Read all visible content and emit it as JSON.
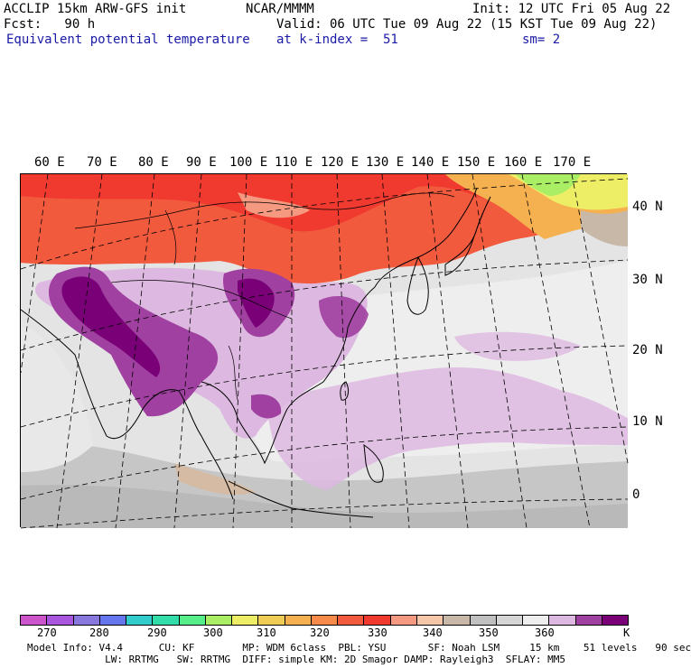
{
  "header": {
    "model": "ACCLIP 15km ARW-GFS init",
    "org": "NCAR/MMMM",
    "init": "Init: 12 UTC Fri 05 Aug 22",
    "fcst": "Fcst:   90 h",
    "valid": "Valid: 06 UTC Tue 09 Aug 22 (15 KST Tue 09 Aug 22)",
    "field": "Equivalent potential temperature",
    "level": "at k-index =  51",
    "smooth": "sm= 2"
  },
  "map": {
    "lon_labels": [
      "60 E",
      "70 E",
      "80 E",
      "90 E",
      "100 E",
      "110 E",
      "120 E",
      "130 E",
      "140 E",
      "150 E",
      "160 E",
      "170 E"
    ],
    "lat_labels": [
      "40 N",
      "30 N",
      "20 N",
      "10 N",
      "0"
    ]
  },
  "colorbar": {
    "colors": [
      "#cc55cc",
      "#aa55dd",
      "#8877dd",
      "#6677ee",
      "#33cccc",
      "#33ddaa",
      "#55ee88",
      "#aaee66",
      "#eeee66",
      "#eecc55",
      "#f5b050",
      "#f58a4a",
      "#f25a3e",
      "#f03a30",
      "#f59a80",
      "#f5c6a8",
      "#c8b8a8",
      "#c0c0c0",
      "#d6d6d6",
      "#eeeeee",
      "#ddb8e0",
      "#a040a0",
      "#7a0078"
    ],
    "ticks": [
      "270",
      "280",
      "290",
      "300",
      "310",
      "320",
      "330",
      "340",
      "350",
      "360"
    ],
    "unit": "K"
  },
  "footer": {
    "line1": "Model Info: V4.4      CU: KF        MP: WDM 6class  PBL: YSU       SF: Noah LSM     15 km    51 levels   90 sec",
    "line2": "             LW: RRTMG   SW: RRTMG  DIFF: simple KM: 2D Smagor DAMP: Rayleigh3  SFLAY: MM5"
  }
}
